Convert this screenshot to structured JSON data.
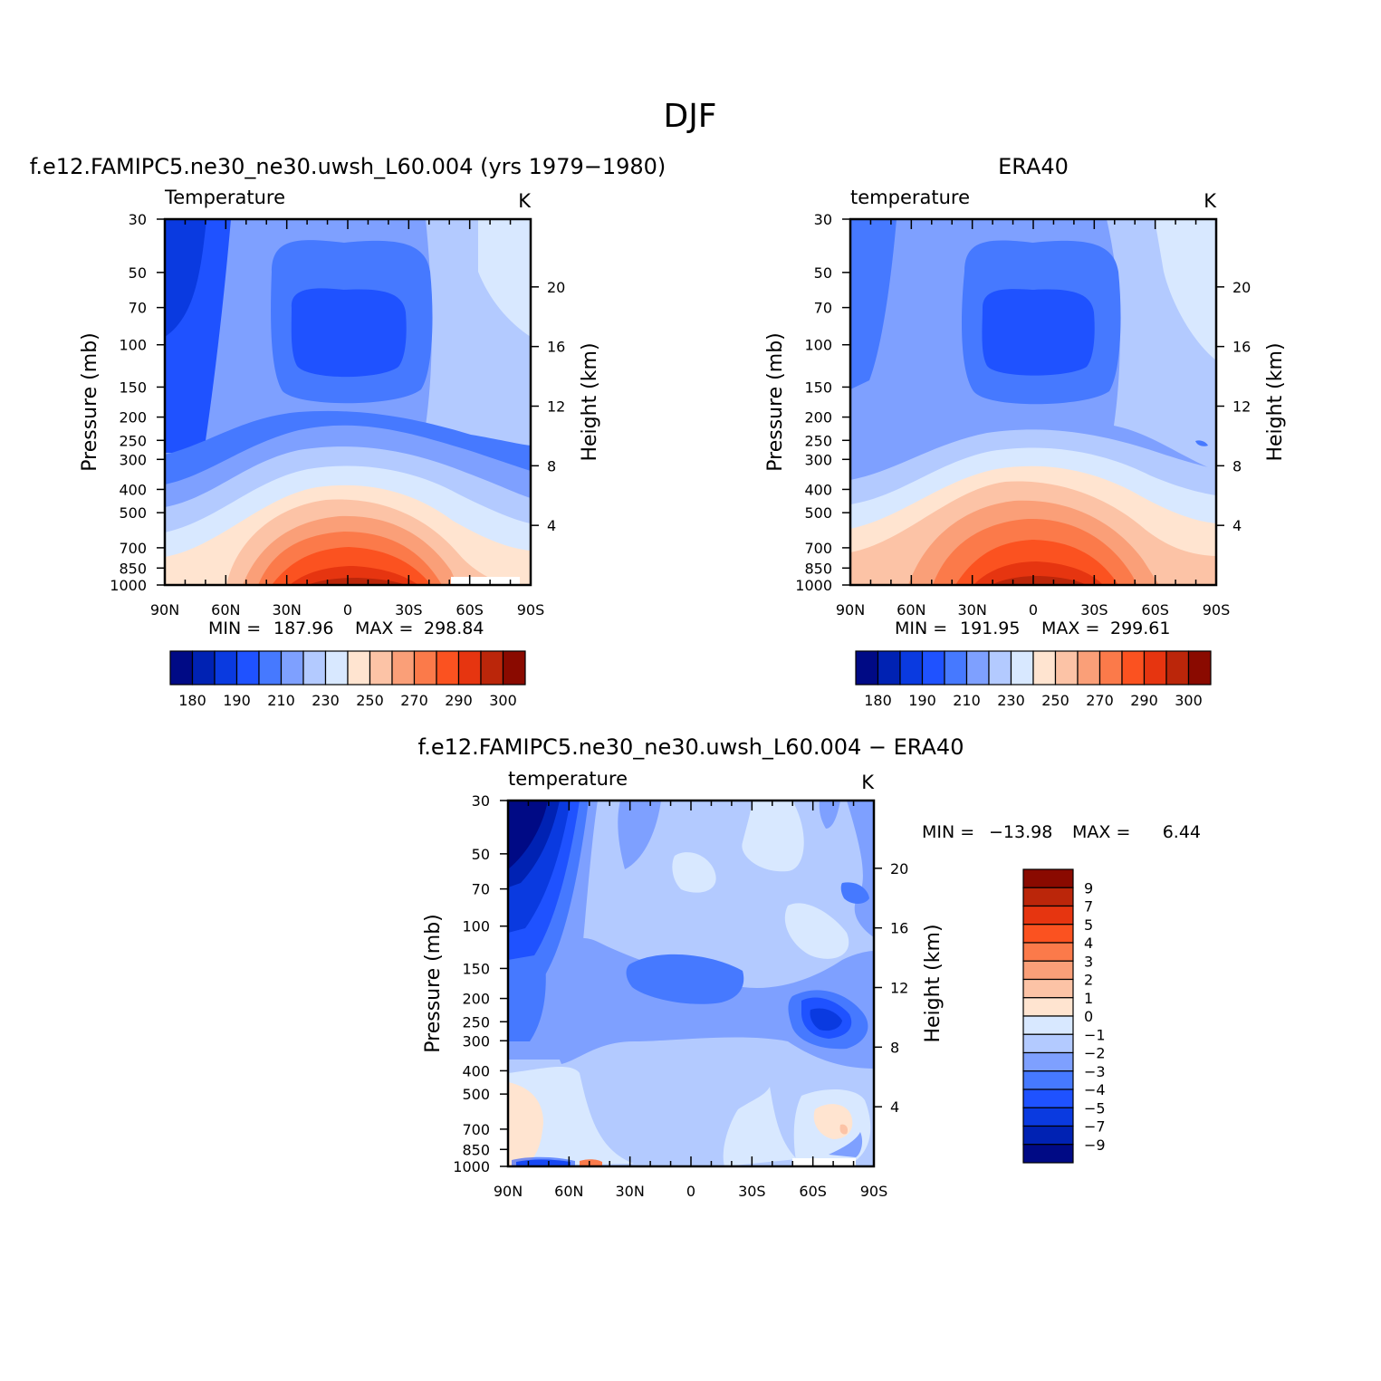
{
  "figure": {
    "title": "DJF"
  },
  "colors": {
    "abs_palette": [
      "#000a85",
      "#0022b3",
      "#0a3ae0",
      "#1f52ff",
      "#4679ff",
      "#7ea0ff",
      "#b3caff",
      "#d8e8ff",
      "#ffe4d0",
      "#fcc3a6",
      "#fa9f78",
      "#fb7a4a",
      "#fb5220",
      "#e63510",
      "#bb260a",
      "#8a0a00"
    ],
    "diff_palette": [
      "#000a85",
      "#0022b3",
      "#0a3ae0",
      "#1f52ff",
      "#4679ff",
      "#7ea0ff",
      "#b3caff",
      "#d8e8ff",
      "#ffe4d0",
      "#fcc3a6",
      "#fa9f78",
      "#fb7a4a",
      "#fb5220",
      "#e63510",
      "#bb260a",
      "#8a0a00"
    ]
  },
  "chart_data": [
    {
      "type": "heatmap",
      "title": "f.e12.FAMIPC5.ne30_ne30.uwsh_L60.004 (yrs 1979−1980)",
      "subtitle": "Temperature",
      "units": "K",
      "ylabel": "Pressure (mb)",
      "y2label": "Height (km)",
      "x_ticks": [
        "90N",
        "60N",
        "30N",
        "0",
        "30S",
        "60S",
        "90S"
      ],
      "y_ticks": [
        "30",
        "50",
        "70",
        "100",
        "150",
        "200",
        "250",
        "300",
        "400",
        "500",
        "700",
        "850",
        "1000"
      ],
      "y_tick_values": [
        30,
        50,
        70,
        100,
        150,
        200,
        250,
        300,
        400,
        500,
        700,
        850,
        1000
      ],
      "y2_ticks": [
        "4",
        "8",
        "12",
        "16",
        "20"
      ],
      "y2_tick_values": [
        4,
        8,
        12,
        16,
        20
      ],
      "xlim": [
        90,
        -90
      ],
      "ylim": [
        30,
        1000
      ],
      "y_scale": "log",
      "stats": {
        "min_label": "MIN =",
        "min": "187.96",
        "max_label": "MAX =",
        "max": "298.84"
      },
      "colorbar": {
        "orientation": "horizontal",
        "labels": [
          "180",
          "190",
          "210",
          "230",
          "250",
          "270",
          "290",
          "300"
        ]
      }
    },
    {
      "type": "heatmap",
      "title": "ERA40",
      "subtitle": "temperature",
      "units": "K",
      "ylabel": "Pressure (mb)",
      "y2label": "Height (km)",
      "x_ticks": [
        "90N",
        "60N",
        "30N",
        "0",
        "30S",
        "60S",
        "90S"
      ],
      "y_ticks": [
        "30",
        "50",
        "70",
        "100",
        "150",
        "200",
        "250",
        "300",
        "400",
        "500",
        "700",
        "850",
        "1000"
      ],
      "y_tick_values": [
        30,
        50,
        70,
        100,
        150,
        200,
        250,
        300,
        400,
        500,
        700,
        850,
        1000
      ],
      "y2_ticks": [
        "4",
        "8",
        "12",
        "16",
        "20"
      ],
      "y2_tick_values": [
        4,
        8,
        12,
        16,
        20
      ],
      "xlim": [
        90,
        -90
      ],
      "ylim": [
        30,
        1000
      ],
      "y_scale": "log",
      "stats": {
        "min_label": "MIN =",
        "min": "191.95",
        "max_label": "MAX =",
        "max": "299.61"
      },
      "colorbar": {
        "orientation": "horizontal",
        "labels": [
          "180",
          "190",
          "210",
          "230",
          "250",
          "270",
          "290",
          "300"
        ]
      }
    },
    {
      "type": "heatmap",
      "title": "f.e12.FAMIPC5.ne30_ne30.uwsh_L60.004 − ERA40",
      "subtitle": "temperature",
      "units": "K",
      "ylabel": "Pressure (mb)",
      "y2label": "Height (km)",
      "x_ticks": [
        "90N",
        "60N",
        "30N",
        "0",
        "30S",
        "60S",
        "90S"
      ],
      "y_ticks": [
        "30",
        "50",
        "70",
        "100",
        "150",
        "200",
        "250",
        "300",
        "400",
        "500",
        "700",
        "850",
        "1000"
      ],
      "y_tick_values": [
        30,
        50,
        70,
        100,
        150,
        200,
        250,
        300,
        400,
        500,
        700,
        850,
        1000
      ],
      "y2_ticks": [
        "4",
        "8",
        "12",
        "16",
        "20"
      ],
      "y2_tick_values": [
        4,
        8,
        12,
        16,
        20
      ],
      "xlim": [
        90,
        -90
      ],
      "ylim": [
        30,
        1000
      ],
      "y_scale": "log",
      "stats": {
        "min_label": "MIN =",
        "min": "−13.98",
        "max_label": "MAX =",
        "max": "6.44"
      },
      "colorbar": {
        "orientation": "vertical",
        "labels": [
          "9",
          "7",
          "5",
          "4",
          "3",
          "2",
          "1",
          "0",
          "−1",
          "−2",
          "−3",
          "−4",
          "−5",
          "−7",
          "−9"
        ]
      }
    }
  ]
}
